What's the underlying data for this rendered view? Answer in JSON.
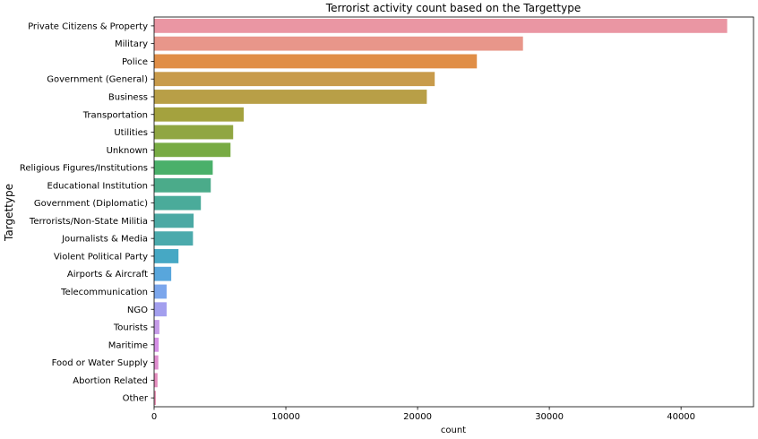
{
  "chart_data": {
    "type": "bar",
    "orientation": "horizontal",
    "title": "Terrorist activity count based on the Targettype",
    "xlabel": "count",
    "ylabel": "Targettype",
    "xlim": [
      0,
      45500
    ],
    "xticks": [
      0,
      10000,
      20000,
      30000,
      40000
    ],
    "grid": false,
    "categories": [
      "Private Citizens & Property",
      "Military",
      "Police",
      "Government (General)",
      "Business",
      "Transportation",
      "Utilities",
      "Unknown",
      "Religious Figures/Institutions",
      "Educational Institution",
      "Government (Diplomatic)",
      "Terrorists/Non-State Militia",
      "Journalists & Media",
      "Violent Political Party",
      "Airports & Aircraft",
      "Telecommunication",
      "NGO",
      "Tourists",
      "Maritime",
      "Food or Water Supply",
      "Abortion Related",
      "Other"
    ],
    "values": [
      43500,
      28000,
      24500,
      21300,
      20700,
      6800,
      6000,
      5800,
      4450,
      4300,
      3550,
      3000,
      2950,
      1850,
      1300,
      950,
      950,
      400,
      350,
      320,
      260,
      140
    ],
    "colors": [
      "#ea96a3",
      "#e8968a",
      "#e08e47",
      "#c89b4b",
      "#b89f47",
      "#a4a23e",
      "#90a642",
      "#78ab43",
      "#4ab06a",
      "#4bab8a",
      "#4aab9a",
      "#4ba9a4",
      "#4baaac",
      "#46a8c4",
      "#58a6dc",
      "#7ba6ec",
      "#a39fee",
      "#c59be8",
      "#d58fe6",
      "#df8dcf",
      "#e48dbd",
      "#e694b4"
    ]
  }
}
